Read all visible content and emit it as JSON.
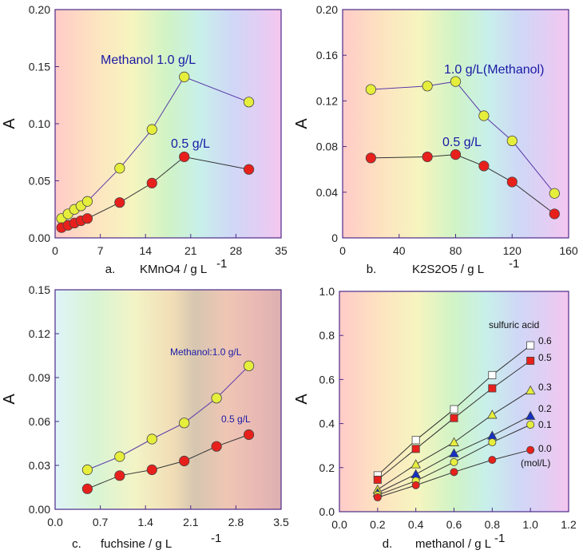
{
  "chart_data": [
    {
      "id": "a",
      "type": "line",
      "caption_letter": "a.",
      "xlabel": "KMnO4 / g L",
      "xlabel_sup": "-1",
      "ylabel": "A",
      "xlim": [
        0,
        35
      ],
      "ylim": [
        0,
        0.2
      ],
      "xticks": [
        "0",
        "7",
        "14",
        "21",
        "28",
        "35"
      ],
      "yticks": [
        "0.00",
        "0.05",
        "0.10",
        "0.15",
        "0.20"
      ],
      "background": "rainbow",
      "series": [
        {
          "name": "Methanol 1.0 g/L",
          "color": "#e6ee3c",
          "x": [
            1,
            2,
            3,
            4,
            5,
            10,
            15,
            20,
            30
          ],
          "y": [
            0.017,
            0.021,
            0.025,
            0.028,
            0.032,
            0.061,
            0.095,
            0.141,
            0.119
          ]
        },
        {
          "name": "0.5 g/L",
          "color": "#e8201c",
          "x": [
            1,
            2,
            3,
            4,
            5,
            10,
            15,
            20,
            30
          ],
          "y": [
            0.009,
            0.011,
            0.013,
            0.015,
            0.017,
            0.031,
            0.048,
            0.071,
            0.06
          ]
        }
      ],
      "annotations": [
        "Methanol  1.0 g/L",
        "0.5 g/L"
      ]
    },
    {
      "id": "b",
      "type": "line",
      "caption_letter": "b.",
      "xlabel": "K2S2O5 / g L",
      "xlabel_sup": "-1",
      "ylabel": "A",
      "xlim": [
        0,
        160
      ],
      "ylim": [
        0,
        0.2
      ],
      "xticks": [
        "0",
        "40",
        "80",
        "120",
        "160"
      ],
      "yticks": [
        "0",
        "0.04",
        "0.08",
        "0.12",
        "0.16",
        "0.20"
      ],
      "background": "rainbow",
      "series": [
        {
          "name": "1.0 g/L(Methanol)",
          "color": "#e6ee3c",
          "x": [
            20,
            60,
            80,
            100,
            120,
            150
          ],
          "y": [
            0.13,
            0.133,
            0.137,
            0.107,
            0.085,
            0.039
          ]
        },
        {
          "name": "0.5 g/L",
          "color": "#e8201c",
          "x": [
            20,
            60,
            80,
            100,
            120,
            150
          ],
          "y": [
            0.07,
            0.071,
            0.073,
            0.063,
            0.049,
            0.021
          ]
        }
      ],
      "annotations": [
        "1.0 g/L(Methanol)",
        "0.5 g/L"
      ]
    },
    {
      "id": "c",
      "type": "line",
      "caption_letter": "c.",
      "xlabel": "fuchsine / g L",
      "xlabel_sup": "-1",
      "ylabel": "A",
      "xlim": [
        0,
        3.5
      ],
      "ylim": [
        0,
        0.15
      ],
      "xticks": [
        "0.0",
        "0.7",
        "1.4",
        "2.1",
        "2.8",
        "3.5"
      ],
      "yticks": [
        "0.00",
        "0.03",
        "0.06",
        "0.09",
        "0.12",
        "0.15"
      ],
      "background": "reverse",
      "series": [
        {
          "name": "Methanol:1.0 g/L",
          "color": "#e6ee3c",
          "x": [
            0.5,
            1.0,
            1.5,
            2.0,
            2.5,
            3.0
          ],
          "y": [
            0.027,
            0.036,
            0.048,
            0.059,
            0.076,
            0.098
          ]
        },
        {
          "name": "0.5 g/L",
          "color": "#e8201c",
          "x": [
            0.5,
            1.0,
            1.5,
            2.0,
            2.5,
            3.0
          ],
          "y": [
            0.014,
            0.023,
            0.027,
            0.033,
            0.043,
            0.051
          ]
        }
      ],
      "annotations": [
        "Methanol:1.0 g/L",
        "0.5 g/L"
      ]
    },
    {
      "id": "d",
      "type": "line",
      "caption_letter": "d.",
      "xlabel": "methanol / g L",
      "xlabel_sup": "-1",
      "ylabel": "A",
      "xlim": [
        0,
        1.2
      ],
      "ylim": [
        0,
        1.0
      ],
      "xticks": [
        "0.0",
        "0.2",
        "0.4",
        "0.6",
        "0.8",
        "1.0",
        "1.2"
      ],
      "yticks": [
        "0.0",
        "0.2",
        "0.4",
        "0.6",
        "0.8",
        "1.0"
      ],
      "background": "rainbow",
      "legend_title": "sulfuric acid",
      "legend_unit": "(mol/L)",
      "series": [
        {
          "name": "0.6",
          "marker": "square",
          "color": "#ffffff",
          "x": [
            0.2,
            0.4,
            0.6,
            0.8,
            1.0
          ],
          "y": [
            0.165,
            0.325,
            0.465,
            0.62,
            0.755
          ]
        },
        {
          "name": "0.5",
          "marker": "square",
          "color": "#e8201c",
          "x": [
            0.2,
            0.4,
            0.6,
            0.8,
            1.0
          ],
          "y": [
            0.145,
            0.285,
            0.425,
            0.56,
            0.685
          ]
        },
        {
          "name": "0.3",
          "marker": "triangle",
          "color": "#e6ee3c",
          "x": [
            0.2,
            0.4,
            0.6,
            0.8,
            1.0
          ],
          "y": [
            0.1,
            0.215,
            0.315,
            0.44,
            0.55
          ]
        },
        {
          "name": "0.2",
          "marker": "triangle",
          "color": "#1530c0",
          "x": [
            0.2,
            0.4,
            0.6,
            0.8,
            1.0
          ],
          "y": [
            0.085,
            0.17,
            0.265,
            0.345,
            0.435
          ]
        },
        {
          "name": "0.1",
          "marker": "circle",
          "color": "#e6ee3c",
          "x": [
            0.2,
            0.4,
            0.6,
            0.8,
            1.0
          ],
          "y": [
            0.075,
            0.14,
            0.225,
            0.315,
            0.395
          ]
        },
        {
          "name": "0.0",
          "marker": "circle",
          "color": "#e8201c",
          "x": [
            0.2,
            0.4,
            0.6,
            0.8,
            1.0
          ],
          "y": [
            0.065,
            0.12,
            0.18,
            0.235,
            0.28
          ]
        }
      ]
    }
  ]
}
